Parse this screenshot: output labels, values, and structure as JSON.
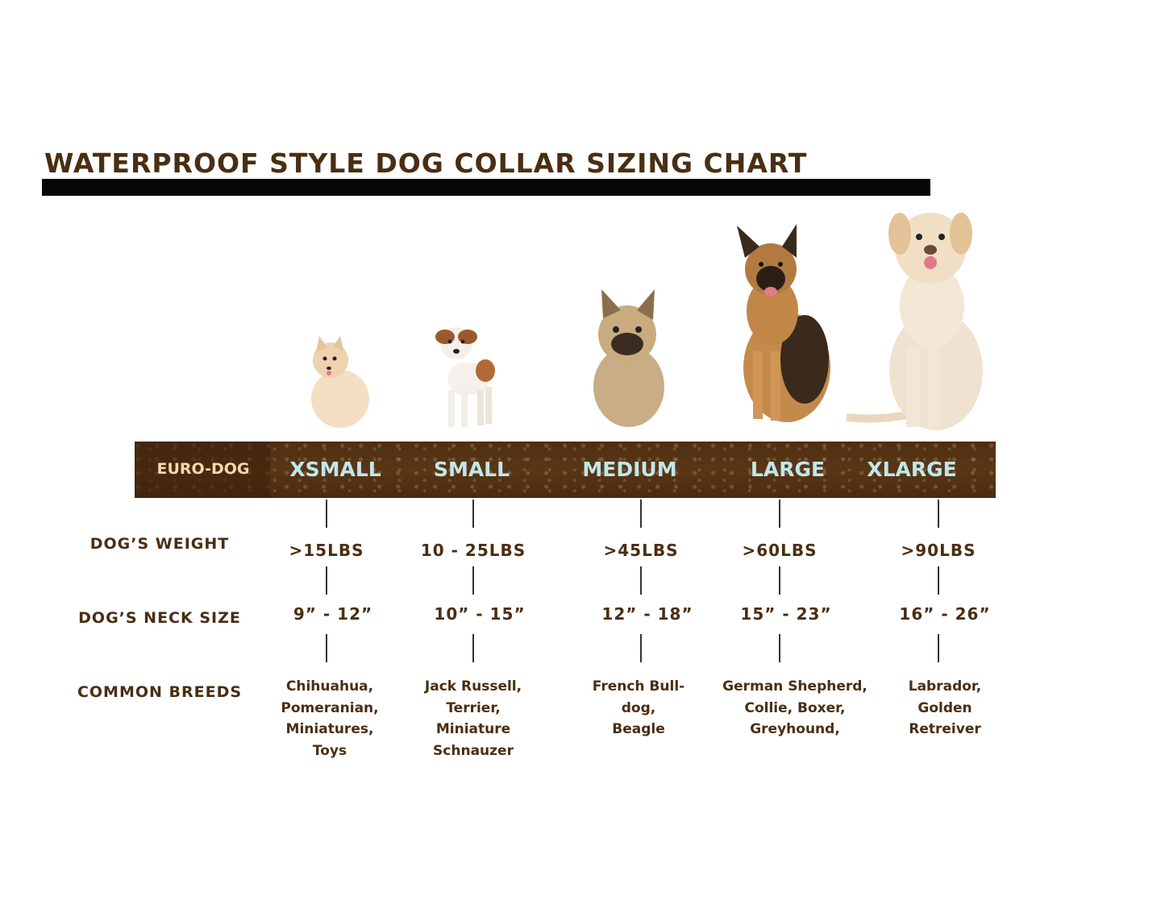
{
  "title": "WATERPROOF STYLE DOG COLLAR SIZING CHART",
  "band": {
    "brand": "EURO-DOG",
    "sizes": [
      "XSMALL",
      "SMALL",
      "MEDIUM",
      "LARGE",
      "XLARGE"
    ]
  },
  "rows": {
    "weight_label": "DOG’S WEIGHT",
    "neck_label": "DOG’S NECK SIZE",
    "breeds_label": "COMMON BREEDS"
  },
  "columns": [
    {
      "size": "XSMALL",
      "dog": "pomeranian",
      "weight": ">15LBS",
      "neck": "9” - 12”",
      "breeds": [
        "Chihuahua,",
        "Pomeranian,",
        "Miniatures,",
        "Toys"
      ]
    },
    {
      "size": "SMALL",
      "dog": "jack-russell",
      "weight": "10 - 25LBS",
      "neck": "10” - 15”",
      "breeds": [
        "Jack Russell,",
        "Terrier,",
        "Miniature",
        "Schnauzer"
      ]
    },
    {
      "size": "MEDIUM",
      "dog": "french-bulldog",
      "weight": ">45LBS",
      "neck": "12” - 18”",
      "breeds": [
        "French Bull-",
        "dog,",
        "Beagle"
      ]
    },
    {
      "size": "LARGE",
      "dog": "german-shepherd",
      "weight": ">60LBS",
      "neck": "15” - 23”",
      "breeds": [
        "German Shepherd,",
        "Collie, Boxer,",
        "Greyhound,"
      ]
    },
    {
      "size": "XLARGE",
      "dog": "labrador",
      "weight": ">90LBS",
      "neck": "16” - 26”",
      "breeds": [
        "Labrador,",
        "Golden",
        "Retreiver"
      ]
    }
  ],
  "colors": {
    "text": "#4a2e12",
    "band": "#54321a",
    "size_text": "#bfe8ea",
    "brand_text": "#f3d9a8"
  }
}
